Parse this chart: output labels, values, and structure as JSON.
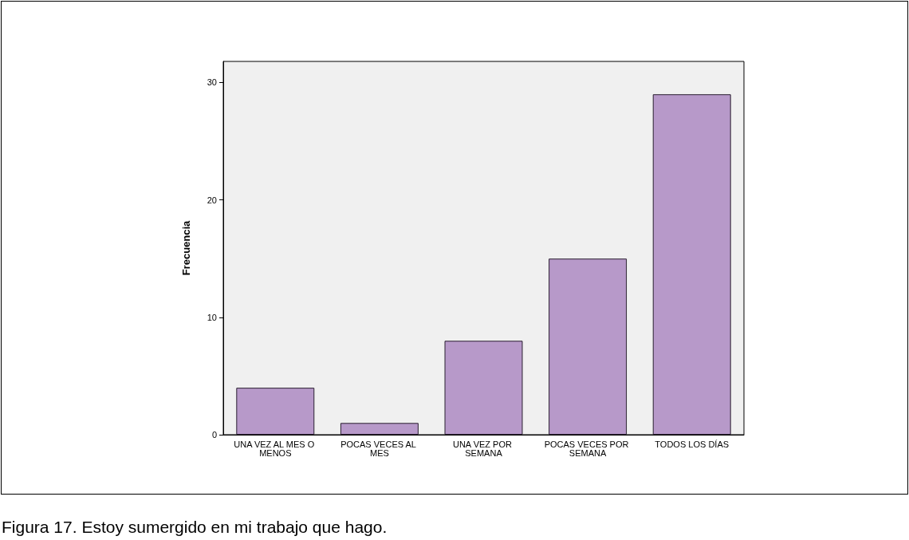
{
  "chart_data": {
    "type": "bar",
    "ylabel": "Frecuencia",
    "categories": [
      "UNA VEZ AL MES O MENOS",
      "POCAS VECES AL MES",
      "UNA VEZ POR SEMANA",
      "POCAS VECES POR SEMANA",
      "TODOS LOS DÍAS"
    ],
    "values": [
      4,
      1,
      8,
      15,
      29
    ],
    "color": "#b799c9",
    "ylim": [
      0,
      31.8
    ],
    "yticks": [
      0,
      10,
      20,
      30
    ],
    "grid": false,
    "annotations": [
      "Figura 17. Estoy sumergido en mi trabajo que hago."
    ]
  }
}
